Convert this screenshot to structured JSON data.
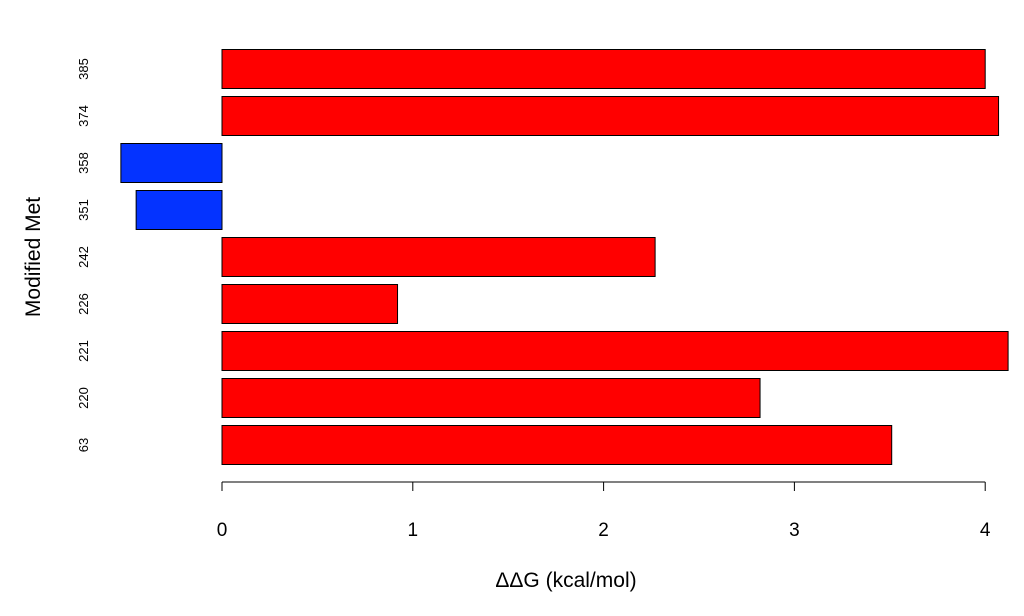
{
  "chart_data": {
    "type": "bar",
    "orientation": "horizontal",
    "title": "",
    "xlabel": "ΔΔG (kcal/mol)",
    "ylabel": "Modified Met",
    "categories": [
      "63",
      "220",
      "221",
      "226",
      "242",
      "351",
      "358",
      "374",
      "385"
    ],
    "values": [
      3.51,
      2.82,
      4.12,
      0.92,
      2.27,
      -0.45,
      -0.53,
      4.07,
      4.0
    ],
    "xlim": [
      -0.55,
      4.15
    ],
    "xticks": [
      "0",
      "1",
      "2",
      "3",
      "4"
    ],
    "grid": false,
    "legend": "none",
    "colors": {
      "positive": "#ff0000",
      "negative": "#0433ff",
      "outline": "#000000"
    }
  }
}
